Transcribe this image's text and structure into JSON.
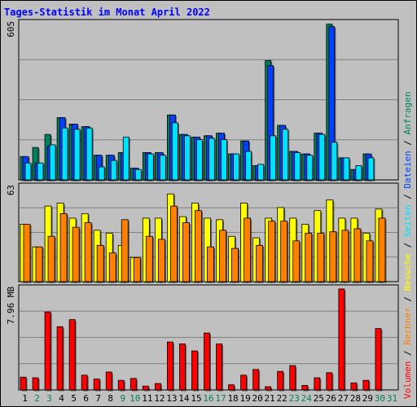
{
  "title": "Tages-Statistik im Monat April 2022",
  "panels": {
    "top": {
      "max_label": "605"
    },
    "middle": {
      "max_label": "63"
    },
    "bottom": {
      "max_label": "7.96 MB"
    }
  },
  "legend_right": {
    "top": [
      "Anfragen",
      "Dateien",
      "Seiten",
      "Besuche",
      "Rechner",
      "Volumen"
    ],
    "separator": " / ",
    "colors": {
      "Anfragen": "#00805c",
      "Dateien": "#0040ff",
      "Seiten": "#00e0ff",
      "Besuche": "#ffff00",
      "Rechner": "#ff8000",
      "Volumen": "#ff0000"
    }
  },
  "colors": {
    "background": "#c0c0c0",
    "plot_bg": "#c0c0c0",
    "grid": "#808080",
    "title": "#0000ff",
    "weekday_label": "#000000",
    "weekend_label": "#00805c"
  },
  "chart_data": [
    {
      "type": "bar",
      "panel": "top",
      "categories": [
        "1",
        "2",
        "3",
        "4",
        "5",
        "6",
        "7",
        "8",
        "9",
        "10",
        "11",
        "12",
        "13",
        "14",
        "15",
        "16",
        "17",
        "18",
        "19",
        "20",
        "21",
        "22",
        "23",
        "24",
        "25",
        "26",
        "27",
        "28",
        "29",
        "30",
        "31"
      ],
      "weekend_days": [
        "2",
        "3",
        "9",
        "10",
        "16",
        "17",
        "23",
        "24",
        "30",
        "31"
      ],
      "ylim": [
        0,
        605
      ],
      "series": [
        {
          "name": "Anfragen",
          "values": [
            90,
            125,
            175,
            240,
            215,
            205,
            95,
            95,
            105,
            45,
            105,
            105,
            250,
            175,
            165,
            170,
            180,
            100,
            150,
            55,
            460,
            210,
            110,
            100,
            180,
            600,
            85,
            40,
            100,
            0,
            0
          ]
        },
        {
          "name": "Dateien",
          "values": [
            90,
            65,
            130,
            240,
            215,
            205,
            95,
            95,
            105,
            45,
            105,
            105,
            250,
            175,
            165,
            170,
            180,
            100,
            150,
            55,
            440,
            210,
            110,
            100,
            180,
            590,
            85,
            40,
            100,
            0,
            0
          ]
        },
        {
          "name": "Seiten",
          "values": [
            65,
            65,
            135,
            200,
            195,
            200,
            50,
            75,
            165,
            40,
            100,
            95,
            220,
            170,
            155,
            160,
            155,
            100,
            110,
            60,
            170,
            195,
            105,
            95,
            175,
            145,
            85,
            55,
            85,
            0,
            0
          ]
        }
      ]
    },
    {
      "type": "bar",
      "panel": "middle",
      "categories": [
        "1",
        "2",
        "3",
        "4",
        "5",
        "6",
        "7",
        "8",
        "9",
        "10",
        "11",
        "12",
        "13",
        "14",
        "15",
        "16",
        "17",
        "18",
        "19",
        "20",
        "21",
        "22",
        "23",
        "24",
        "25",
        "26",
        "27",
        "28",
        "29",
        "30",
        "31"
      ],
      "weekend_days": [
        "2",
        "3",
        "9",
        "10",
        "16",
        "17",
        "23",
        "24",
        "30",
        "31"
      ],
      "ylim": [
        0,
        63
      ],
      "series": [
        {
          "name": "Besuche",
          "values": [
            38,
            23,
            50,
            52,
            42,
            45,
            34,
            32,
            24,
            16,
            42,
            42,
            58,
            43,
            52,
            42,
            41,
            30,
            52,
            29,
            42,
            49,
            42,
            38,
            47,
            54,
            42,
            42,
            32,
            48,
            0
          ]
        },
        {
          "name": "Rechner",
          "values": [
            38,
            23,
            30,
            45,
            36,
            39,
            24,
            19,
            41,
            16,
            30,
            28,
            50,
            39,
            47,
            23,
            34,
            22,
            42,
            24,
            40,
            40,
            27,
            32,
            32,
            33,
            34,
            35,
            27,
            42,
            0
          ]
        }
      ]
    },
    {
      "type": "bar",
      "panel": "bottom",
      "categories": [
        "1",
        "2",
        "3",
        "4",
        "5",
        "6",
        "7",
        "8",
        "9",
        "10",
        "11",
        "12",
        "13",
        "14",
        "15",
        "16",
        "17",
        "18",
        "19",
        "20",
        "21",
        "22",
        "23",
        "24",
        "25",
        "26",
        "27",
        "28",
        "29",
        "30",
        "31"
      ],
      "weekend_days": [
        "2",
        "3",
        "9",
        "10",
        "16",
        "17",
        "23",
        "24",
        "30",
        "31"
      ],
      "ylim": [
        0,
        7.96
      ],
      "series": [
        {
          "name": "Volumen",
          "values": [
            1.0,
            0.95,
            6.1,
            4.95,
            5.5,
            1.15,
            0.85,
            1.4,
            0.75,
            0.9,
            0.3,
            0.5,
            3.75,
            3.6,
            3.05,
            4.45,
            3.6,
            0.4,
            1.15,
            1.6,
            0.25,
            1.45,
            1.9,
            0.35,
            0.95,
            1.35,
            7.9,
            0.55,
            0.75,
            4.8,
            0
          ]
        }
      ]
    }
  ]
}
